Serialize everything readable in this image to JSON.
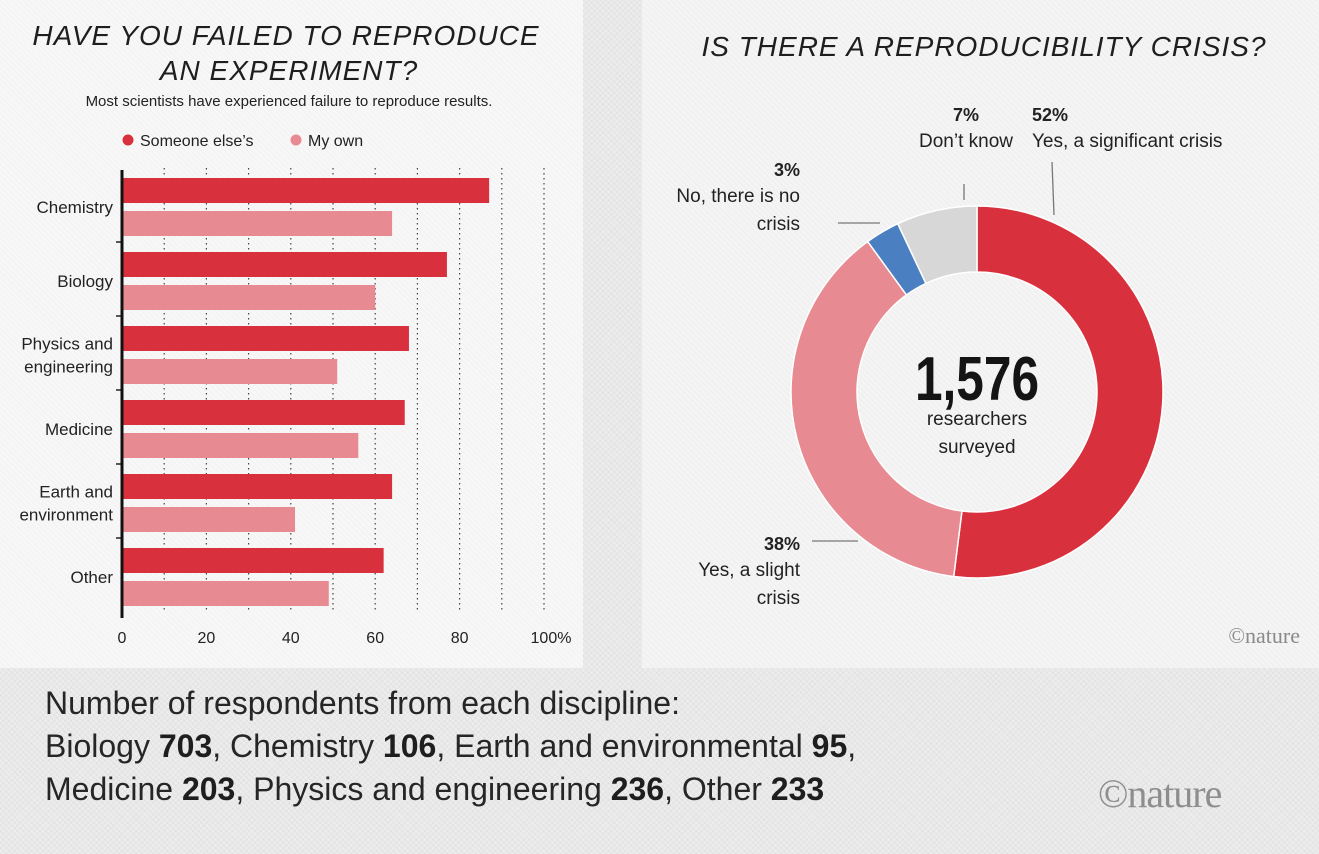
{
  "chart_data": [
    {
      "type": "bar",
      "title_lines": [
        "HAVE YOU FAILED TO REPRODUCE",
        "AN EXPERIMENT?"
      ],
      "subtitle": "Most scientists have experienced failure to reproduce results.",
      "categories": [
        "Chemistry",
        "Biology",
        "Physics and engineering",
        "Medicine",
        "Earth and environment",
        "Other"
      ],
      "category_lines": [
        [
          "Chemistry"
        ],
        [
          "Biology"
        ],
        [
          "Physics and",
          "engineering"
        ],
        [
          "Medicine"
        ],
        [
          "Earth and",
          "environment"
        ],
        [
          "Other"
        ]
      ],
      "series": [
        {
          "name": "Someone else’s",
          "color": "#d9303e",
          "values": [
            87,
            77,
            68,
            67,
            64,
            62
          ]
        },
        {
          "name": "My own",
          "color": "#e88a92",
          "values": [
            64,
            60,
            51,
            56,
            41,
            49
          ]
        }
      ],
      "xlim": [
        0,
        100
      ],
      "ticks": [
        0,
        20,
        40,
        60,
        80,
        100
      ],
      "tick_labels": [
        "0",
        "20",
        "40",
        "60",
        "80",
        "100%"
      ],
      "xlabel": "",
      "ylabel": "",
      "grid": true,
      "legend_position": "top-left"
    },
    {
      "type": "pie",
      "title": "IS THERE A REPRODUCIBILITY CRISIS?",
      "center_value": "1,576",
      "center_label_lines": [
        "researchers",
        "surveyed"
      ],
      "slices": [
        {
          "label_lines": [
            "Yes, a significant crisis"
          ],
          "percent_label": "52%",
          "value": 52,
          "color": "#d9303e"
        },
        {
          "label_lines": [
            "Yes, a slight",
            "crisis"
          ],
          "percent_label": "38%",
          "value": 38,
          "color": "#e88a92"
        },
        {
          "label_lines": [
            "No, there is no",
            "crisis"
          ],
          "percent_label": "3%",
          "value": 3,
          "color": "#4a7fc1"
        },
        {
          "label_lines": [
            "Don’t know"
          ],
          "percent_label": "7%",
          "value": 7,
          "color": "#d7d7d7"
        }
      ]
    }
  ],
  "watermark": "©nature",
  "respondents": {
    "heading": "Number of respondents from each discipline:",
    "line2": [
      {
        "name": "Biology",
        "count": "703",
        "sep": ", "
      },
      {
        "name": "Chemistry",
        "count": "106",
        "sep": ", "
      },
      {
        "name": "Earth and environmental",
        "count": "95",
        "sep": ","
      }
    ],
    "line3": [
      {
        "name": "Medicine",
        "count": "203",
        "sep": ", "
      },
      {
        "name": "Physics and engineering",
        "count": "236",
        "sep": ", "
      },
      {
        "name": "Other",
        "count": "233",
        "sep": ""
      }
    ]
  }
}
